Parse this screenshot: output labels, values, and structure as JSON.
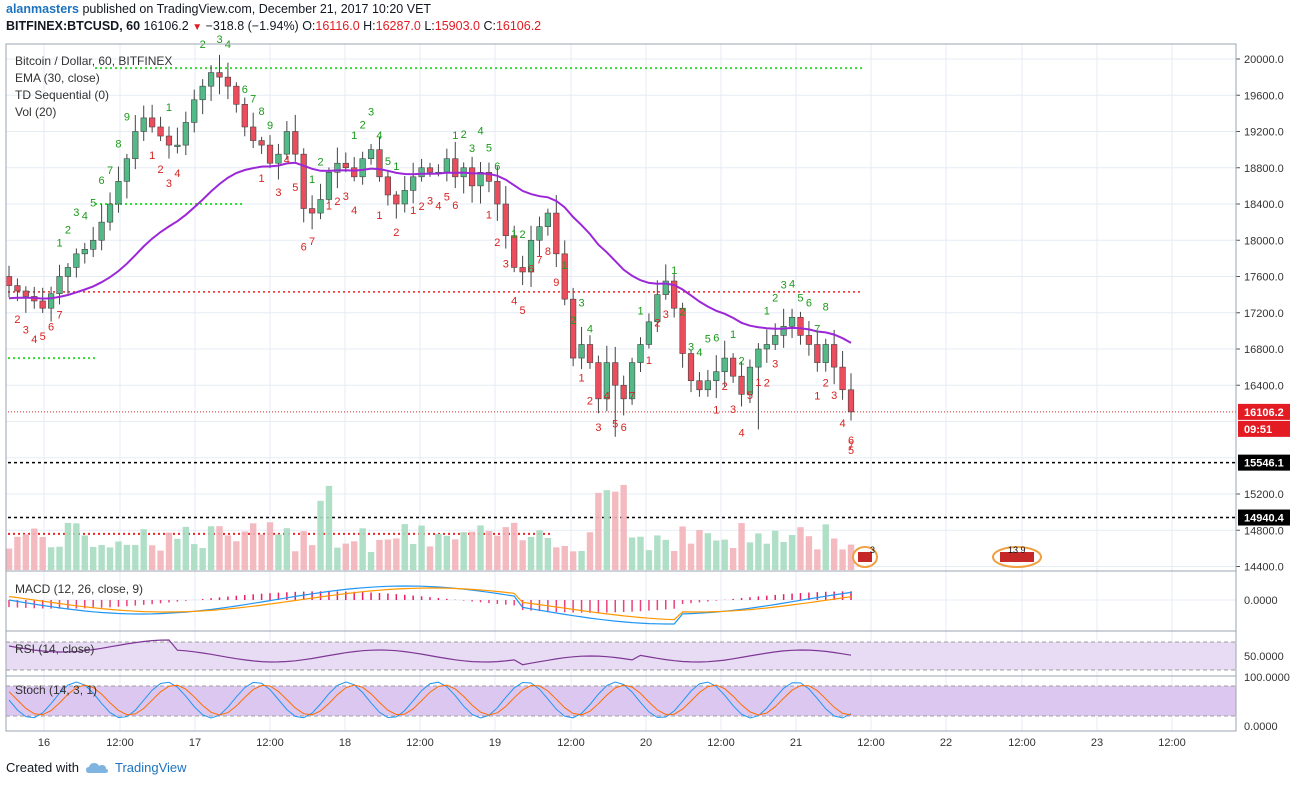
{
  "header": {
    "user": "alanmasters",
    "published_text": " published on TradingView.com, December 21, 2017 10:20 VET",
    "symbol": "BITFINEX:BTCUSD, 60",
    "last": "16106.2",
    "change": "−318.8 (−1.94%)",
    "o_label": "O:",
    "o": "16116.0",
    "h_label": "H:",
    "h": "16287.0",
    "l_label": "L:",
    "l": "15903.0",
    "c_label": "C:",
    "c": "16106.2"
  },
  "legend": {
    "main": "Bitcoin / Dollar, 60, BITFINEX",
    "ema": "EMA (30, close)",
    "td": "TD Sequential (0)",
    "vol": "Vol (20)",
    "macd": "MACD (12, 26, close, 9)",
    "rsi": "RSI (14, close)",
    "stoch": "Stoch (14, 3, 1)"
  },
  "price_axis": {
    "ticks": [
      "20000.0",
      "19600.0",
      "19200.0",
      "18800.0",
      "18400.0",
      "18000.0",
      "17600.0",
      "17200.0",
      "16800.0",
      "16400.0",
      "15200.0",
      "14800.0",
      "14400.0"
    ],
    "last_price_label": "16106.2",
    "countdown_label": "09:51",
    "level_1": "15546.1",
    "level_2": "14940.4"
  },
  "macd_axis": {
    "ticks": [
      "0.0000"
    ]
  },
  "rsi_axis": {
    "ticks": [
      "50.0000"
    ]
  },
  "stoch_axis": {
    "ticks": [
      "100.0000",
      "0.0000"
    ]
  },
  "time_axis": [
    "16",
    "12:00",
    "17",
    "12:00",
    "18",
    "12:00",
    "19",
    "12:00",
    "20",
    "12:00",
    "21",
    "12:00",
    "22",
    "12:00",
    "23",
    "12:00"
  ],
  "event_labels": [
    "3",
    "13 9"
  ],
  "footer": {
    "created_with": "Created with",
    "brand": "TradingView"
  },
  "colors": {
    "up": "#53b987",
    "down": "#eb4d5c",
    "ema": "#9c27d8",
    "macd": "#2196f3",
    "signal": "#ff9800",
    "rsi": "#7e3794",
    "stoch_k": "#2196f3",
    "stoch_d": "#ff6d00",
    "td_buy": "#1a9b1a",
    "td_sell": "#d8221f",
    "level": "#000000"
  },
  "chart_data": {
    "type": "candlestick",
    "title": "Bitcoin / Dollar, 60, BITFINEX",
    "symbol": "BITFINEX:BTCUSD",
    "interval": "60",
    "ylim": [
      14400,
      20100
    ],
    "horizontal_levels": [
      19900,
      18400,
      17430,
      16700,
      15546.1,
      14940.4,
      14760
    ],
    "ema_period": 30,
    "last_close": 16106.2,
    "price_closes": [
      17500,
      17440,
      17380,
      17330,
      17250,
      17410,
      17600,
      17700,
      17850,
      17900,
      18000,
      18200,
      18400,
      18650,
      18900,
      19200,
      19350,
      19250,
      19150,
      19050,
      19050,
      19300,
      19550,
      19700,
      19850,
      19800,
      19700,
      19500,
      19250,
      19100,
      19050,
      18850,
      18950,
      19200,
      18950,
      18350,
      18300,
      18450,
      18750,
      18850,
      18800,
      18700,
      18900,
      19000,
      18700,
      18500,
      18400,
      18550,
      18700,
      18800,
      18750,
      18750,
      18900,
      18700,
      18800,
      18600,
      18750,
      18650,
      18400,
      18050,
      17700,
      17650,
      18000,
      18150,
      18300,
      17850,
      17350,
      16700,
      16850,
      16650,
      16250,
      16650,
      16400,
      16250,
      16650,
      16850,
      17100,
      17400,
      17550,
      17250,
      16750,
      16450,
      16350,
      16450,
      16550,
      16700,
      16500,
      16300,
      16600,
      16800,
      16850,
      16950,
      17050,
      17150,
      16950,
      16850,
      16650,
      16850,
      16600,
      16350,
      16106
    ],
    "volume_note": "Vol (20) histogram"
  }
}
